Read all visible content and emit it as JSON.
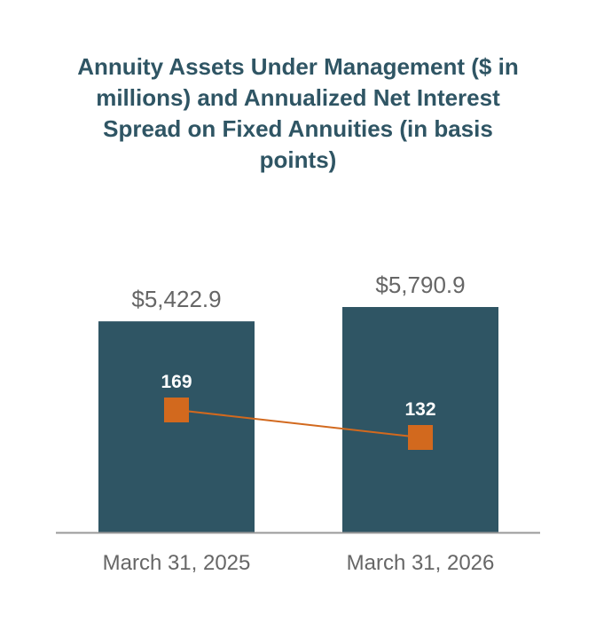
{
  "chart_data": {
    "type": "bar",
    "title": "Annuity Assets Under Management ($ in millions) and Annualized Net Interest Spread on Fixed Annuities (in basis points)",
    "categories": [
      "March 31, 2025",
      "March 31, 2026"
    ],
    "series": [
      {
        "type": "bar",
        "values": [
          5422.9,
          5790.9
        ],
        "labels": [
          "$5,422.9",
          "$5,790.9"
        ],
        "color": "#2f5564"
      },
      {
        "type": "line",
        "values": [
          169,
          132
        ],
        "labels": [
          "169",
          "132"
        ],
        "color": "#d2691e",
        "marker": "square"
      }
    ],
    "grid": false,
    "legend": "none"
  },
  "colors": {
    "title": "#2f5564",
    "bar": "#2f5564",
    "line": "#d2691e",
    "axis": "#999999",
    "label": "#666666"
  }
}
